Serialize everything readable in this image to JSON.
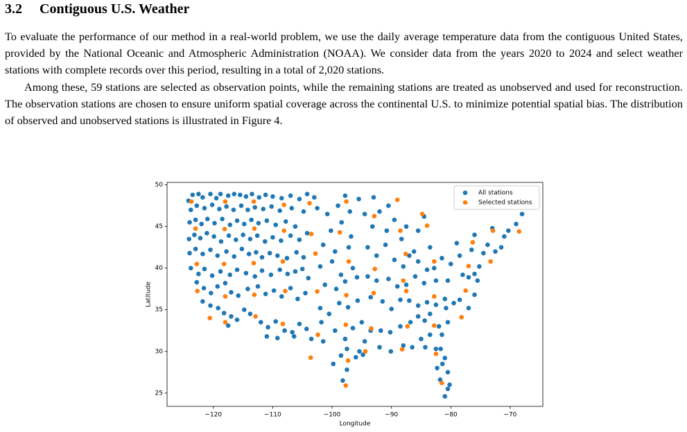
{
  "section": {
    "number": "3.2",
    "title": "Contiguous U.S. Weather"
  },
  "paragraphs": [
    "To evaluate the performance of our method in a real-world problem, we use the daily average temperature data from the contiguous United States, provided by the National Oceanic and Atmospheric Administration (NOAA). We consider data from the years 2020 to 2024 and select weather stations with complete records over this period, resulting in a total of 2,020 stations.",
    "Among these, 59 stations are selected as observation points, while the remaining stations are treated as unobserved and used for reconstruction. The observation stations are chosen to ensure uniform spatial coverage across the continental U.S. to minimize potential spatial bias. The distribution of observed and unobserved stations is illustrated in Figure 4."
  ],
  "chart_data": {
    "type": "scatter",
    "xlabel": "Longitude",
    "ylabel": "Latitude",
    "xlim": [
      -127.8,
      -64.5
    ],
    "ylim": [
      23.4,
      50.3
    ],
    "xticks": [
      {
        "value": -120,
        "label": "−120"
      },
      {
        "value": -110,
        "label": "−110"
      },
      {
        "value": -100,
        "label": "−100"
      },
      {
        "value": -90,
        "label": "−90"
      },
      {
        "value": -80,
        "label": "−80"
      },
      {
        "value": -70,
        "label": "−70"
      }
    ],
    "yticks": [
      25,
      30,
      35,
      40,
      45,
      50
    ],
    "grid": false,
    "legend": "upper right",
    "series": [
      {
        "name": "All stations",
        "color": "#1f77b4",
        "x": [
          -124.2,
          -123.5,
          -122.5,
          -121.8,
          -120.5,
          -119.5,
          -118.8,
          -117.5,
          -116.5,
          -115.5,
          -114.5,
          -113.5,
          -112.3,
          -111.2,
          -110.0,
          -108.5,
          -107.0,
          -105.5,
          -104.2,
          -123.8,
          -122.8,
          -121.5,
          -120.2,
          -119.0,
          -117.8,
          -116.6,
          -115.3,
          -114.2,
          -113.0,
          -111.6,
          -110.2,
          -108.8,
          -106.8,
          -104.8,
          -124.0,
          -123.0,
          -122.0,
          -121.0,
          -119.8,
          -118.5,
          -117.2,
          -116.0,
          -114.8,
          -113.6,
          -112.4,
          -111.0,
          -109.5,
          -107.8,
          -106.2,
          -124.1,
          -123.2,
          -122.2,
          -121.1,
          -119.9,
          -118.7,
          -117.4,
          -116.2,
          -115.0,
          -113.8,
          -112.6,
          -111.3,
          -110.0,
          -108.6,
          -107.0,
          -105.5,
          -104.2,
          -124.0,
          -123.0,
          -121.8,
          -120.5,
          -119.3,
          -117.8,
          -116.5,
          -115.2,
          -114.0,
          -112.8,
          -111.8,
          -110.5,
          -109.2,
          -107.6,
          -106.0,
          -104.8,
          -123.8,
          -122.5,
          -121.5,
          -120.2,
          -118.8,
          -117.2,
          -116.0,
          -114.5,
          -113.0,
          -111.8,
          -110.3,
          -108.8,
          -107.5,
          -106.2,
          -105.0,
          -104.0,
          -122.8,
          -121.6,
          -120.4,
          -119.3,
          -118.0,
          -117.0,
          -115.8,
          -114.2,
          -112.5,
          -111.2,
          -109.8,
          -108.5,
          -107.0,
          -105.8,
          -104.5,
          -121.8,
          -120.5,
          -119.2,
          -118.2,
          -117.0,
          -116.0,
          -114.8,
          -113.8,
          -112.0,
          -110.8,
          -109.5,
          -108.0,
          -106.7,
          -105.5,
          -104.3,
          -117.5,
          -111.0,
          -109.2,
          -106.4,
          -102.5,
          -100.8,
          -99.0,
          -97.0,
          -100.2,
          -98.4,
          -96.8,
          -101.5,
          -99.5,
          -97.2,
          -102.0,
          -100.0,
          -98.5,
          -96.5,
          -101.2,
          -99.3,
          -97.8,
          -95.8,
          -102.0,
          -100.5,
          -98.8,
          -97.3,
          -95.7,
          -101.8,
          -99.5,
          -97.8,
          -96.5,
          -95.4,
          -94.5,
          -98.5,
          -97.5,
          -99.8,
          -97.5,
          -98.2,
          -103.5,
          -101.5,
          -96.0,
          -94.8,
          -95.0,
          -94.5,
          -93.2,
          -92.0,
          -90.8,
          -89.5,
          -88.3,
          -87.5,
          -85.5,
          -84.5,
          -83.5,
          -86.2,
          -94.0,
          -92.5,
          -91.0,
          -89.5,
          -88.0,
          -87.0,
          -85.5,
          -84.0,
          -82.8,
          -81.5,
          -80.0,
          -78.5,
          -76.5,
          -75.2,
          -74.5,
          -73.8,
          -72.5,
          -71.5,
          -71.0,
          -70.3,
          -69.0,
          -68.0,
          -73.0,
          -76.0,
          -79.0,
          -94.0,
          -92.5,
          -90.5,
          -89.0,
          -87.5,
          -86.0,
          -84.5,
          -82.5,
          -80.5,
          -78.0,
          -77.0,
          -76.0,
          -75.5,
          -93.5,
          -91.5,
          -90.0,
          -88.5,
          -87.0,
          -85.5,
          -84.0,
          -82.5,
          -81.0,
          -79.5,
          -78.5,
          -77.0,
          -76.0,
          -80.8,
          -83.5,
          -84.4,
          -85.5,
          -86.8,
          -88.5,
          -90.2,
          -91.8,
          -93.5,
          -92.0,
          -90.1,
          -88.0,
          -86.5,
          -85.0,
          -83.5,
          -81.5,
          -80.5,
          -82.0,
          -84.3,
          -82.5,
          -81.7,
          -81.0,
          -82.3,
          -81.4,
          -80.5,
          -81.8,
          -80.2,
          -80.5,
          -81.0,
          -103.0,
          -95.5,
          -93.0,
          -90.5,
          -97.8
        ],
        "values": [
          48.1,
          48.8,
          48.9,
          48.5,
          48.9,
          48.4,
          48.9,
          48.7,
          48.9,
          48.8,
          48.6,
          48.9,
          48.5,
          48.8,
          48.6,
          48.4,
          48.7,
          48.3,
          48.9,
          47.0,
          47.5,
          47.2,
          47.6,
          47.1,
          47.4,
          47.0,
          47.5,
          47.0,
          47.3,
          47.1,
          47.4,
          46.9,
          47.2,
          46.8,
          45.5,
          45.8,
          45.3,
          45.9,
          45.4,
          45.9,
          45.2,
          45.7,
          45.3,
          45.8,
          45.4,
          45.7,
          45.2,
          45.6,
          45.0,
          43.5,
          44.0,
          43.6,
          44.2,
          43.8,
          43.2,
          43.9,
          43.4,
          44.0,
          43.5,
          43.9,
          43.2,
          43.7,
          43.3,
          43.9,
          43.4,
          44.2,
          41.8,
          42.3,
          41.7,
          42.2,
          41.5,
          42.0,
          41.4,
          42.3,
          41.7,
          41.9,
          41.3,
          41.8,
          41.5,
          41.2,
          41.9,
          41.3,
          40.0,
          39.3,
          39.9,
          39.1,
          39.6,
          39.2,
          39.8,
          39.4,
          39.0,
          39.7,
          39.2,
          39.8,
          39.3,
          39.6,
          39.9,
          38.8,
          38.3,
          37.6,
          37.0,
          37.8,
          38.2,
          37.1,
          36.7,
          37.5,
          37.8,
          36.9,
          37.3,
          36.6,
          37.6,
          36.3,
          37.0,
          36.0,
          35.5,
          35.2,
          34.6,
          34.2,
          33.8,
          35.0,
          34.5,
          33.5,
          32.9,
          33.6,
          32.5,
          32.3,
          33.3,
          32.7,
          33.1,
          31.8,
          31.6,
          31.8,
          47.2,
          46.5,
          47.5,
          46.8,
          44.5,
          45.5,
          43.8,
          42.8,
          42.0,
          42.5,
          40.2,
          40.8,
          39.2,
          40.0,
          38.0,
          37.5,
          38.4,
          38.9,
          35.2,
          34.5,
          35.8,
          35.3,
          36.1,
          33.5,
          32.5,
          31.5,
          32.8,
          30.0,
          31.2,
          29.5,
          30.3,
          28.5,
          27.8,
          26.5,
          31.5,
          31.2,
          29.3,
          29.6,
          33.5,
          46.5,
          45.0,
          46.8,
          44.5,
          45.8,
          43.5,
          45.0,
          44.5,
          46.2,
          42.5,
          42.0,
          42.5,
          41.5,
          42.8,
          41.0,
          40.2,
          41.5,
          40.8,
          39.8,
          40.0,
          41.2,
          40.5,
          41.5,
          42.2,
          40.2,
          41.8,
          42.8,
          42.0,
          42.5,
          43.8,
          44.5,
          45.3,
          46.5,
          44.8,
          44.0,
          43.0,
          39.0,
          38.5,
          38.7,
          37.8,
          38.0,
          39.0,
          38.2,
          38.5,
          38.5,
          39.2,
          38.9,
          39.3,
          38.5,
          36.5,
          36.0,
          35.1,
          36.2,
          36.1,
          35.5,
          35.9,
          35.6,
          36.3,
          35.8,
          36.2,
          35.2,
          36.8,
          35.2,
          34.5,
          33.7,
          34.2,
          33.5,
          33.0,
          32.3,
          32.5,
          32.5,
          30.5,
          30.0,
          30.7,
          30.5,
          31.5,
          32.0,
          32.0,
          33.5,
          33.0,
          30.5,
          30.3,
          30.3,
          29.2,
          28.0,
          28.5,
          27.5,
          26.6,
          26.0,
          25.5,
          24.6,
          48.5,
          48.3,
          48.5,
          47.5,
          48.7
        ]
      },
      {
        "name": "Selected stations",
        "color": "#ff7f0e",
        "x": [
          -123.7,
          -118.0,
          -113.2,
          -108.1,
          -103.8,
          -97.6,
          -89.0,
          -92.9,
          -84.8,
          -123.0,
          -118.1,
          -113.1,
          -108.1,
          -103.5,
          -98.7,
          -88.5,
          -84.0,
          -72.9,
          -68.5,
          -76.3,
          -87.6,
          -82.8,
          -73.3,
          -77.0,
          -122.8,
          -118.2,
          -113.2,
          -108.3,
          -102.8,
          -97.2,
          -92.8,
          -122.7,
          -118.0,
          -113.1,
          -107.9,
          -102.5,
          -97.6,
          -93.0,
          -87.5,
          -82.8,
          -77.5,
          -120.6,
          -118.0,
          -112.9,
          -108.3,
          -102.4,
          -97.7,
          -93.4,
          -87.3,
          -82.8,
          -78.2,
          -103.6,
          -97.3,
          -97.7,
          -94.4,
          -88.2,
          -82.5,
          -81.5,
          -88.0
        ],
        "values": [
          48.0,
          48.0,
          48.0,
          47.6,
          47.8,
          48.0,
          48.2,
          46.25,
          46.5,
          44.75,
          44.7,
          44.75,
          44.5,
          44.1,
          44.3,
          44.5,
          45.1,
          44.5,
          44.4,
          43.1,
          41.7,
          40.8,
          40.8,
          40.25,
          40.5,
          40.5,
          40.6,
          40.8,
          41.75,
          40.8,
          39.9,
          37.25,
          36.6,
          36.8,
          37.25,
          37.2,
          36.75,
          37.0,
          37.25,
          36.6,
          37.3,
          34.0,
          33.5,
          34.2,
          33.3,
          32.0,
          33.2,
          32.75,
          33.0,
          33.1,
          34.1,
          29.25,
          28.9,
          25.9,
          30.0,
          30.25,
          29.7,
          26.2,
          38.5
        ]
      }
    ]
  }
}
